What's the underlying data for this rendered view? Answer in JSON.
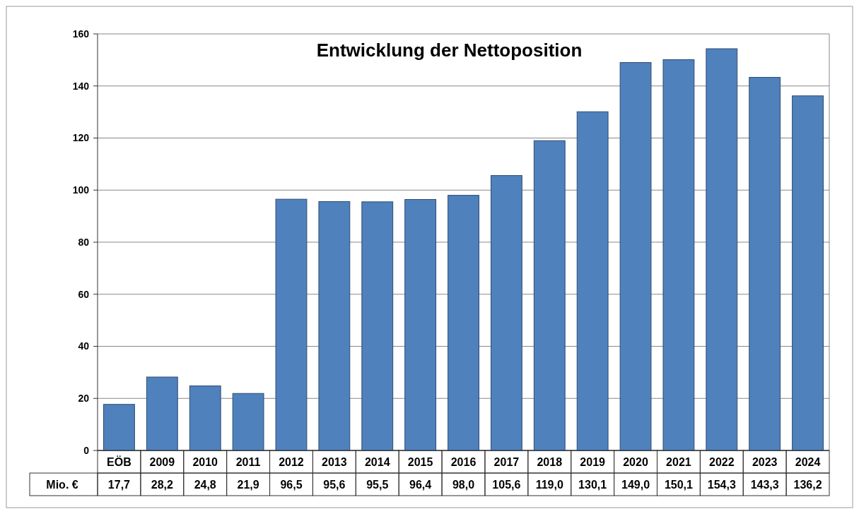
{
  "chart_data": {
    "type": "bar",
    "title": "Entwicklung der Nettoposition",
    "categories": [
      "EÖB",
      "2009",
      "2010",
      "2011",
      "2012",
      "2013",
      "2014",
      "2015",
      "2016",
      "2017",
      "2018",
      "2019",
      "2020",
      "2021",
      "2022",
      "2023",
      "2024"
    ],
    "series": [
      {
        "name": "Mio. €",
        "color": "#4f81bd",
        "values": [
          17.7,
          28.2,
          24.8,
          21.9,
          96.5,
          95.6,
          95.5,
          96.4,
          98.0,
          105.6,
          119.0,
          130.1,
          149.0,
          150.1,
          154.3,
          143.3,
          136.2
        ],
        "value_labels": [
          "17,7",
          "28,2",
          "24,8",
          "21,9",
          "96,5",
          "95,6",
          "95,5",
          "96,4",
          "98,0",
          "105,6",
          "119,0",
          "130,1",
          "149,0",
          "150,1",
          "154,3",
          "143,3",
          "136,2"
        ]
      }
    ],
    "ylim": [
      0,
      160
    ],
    "yticks": [
      0,
      20,
      40,
      60,
      80,
      100,
      120,
      140,
      160
    ],
    "grid": "y"
  }
}
